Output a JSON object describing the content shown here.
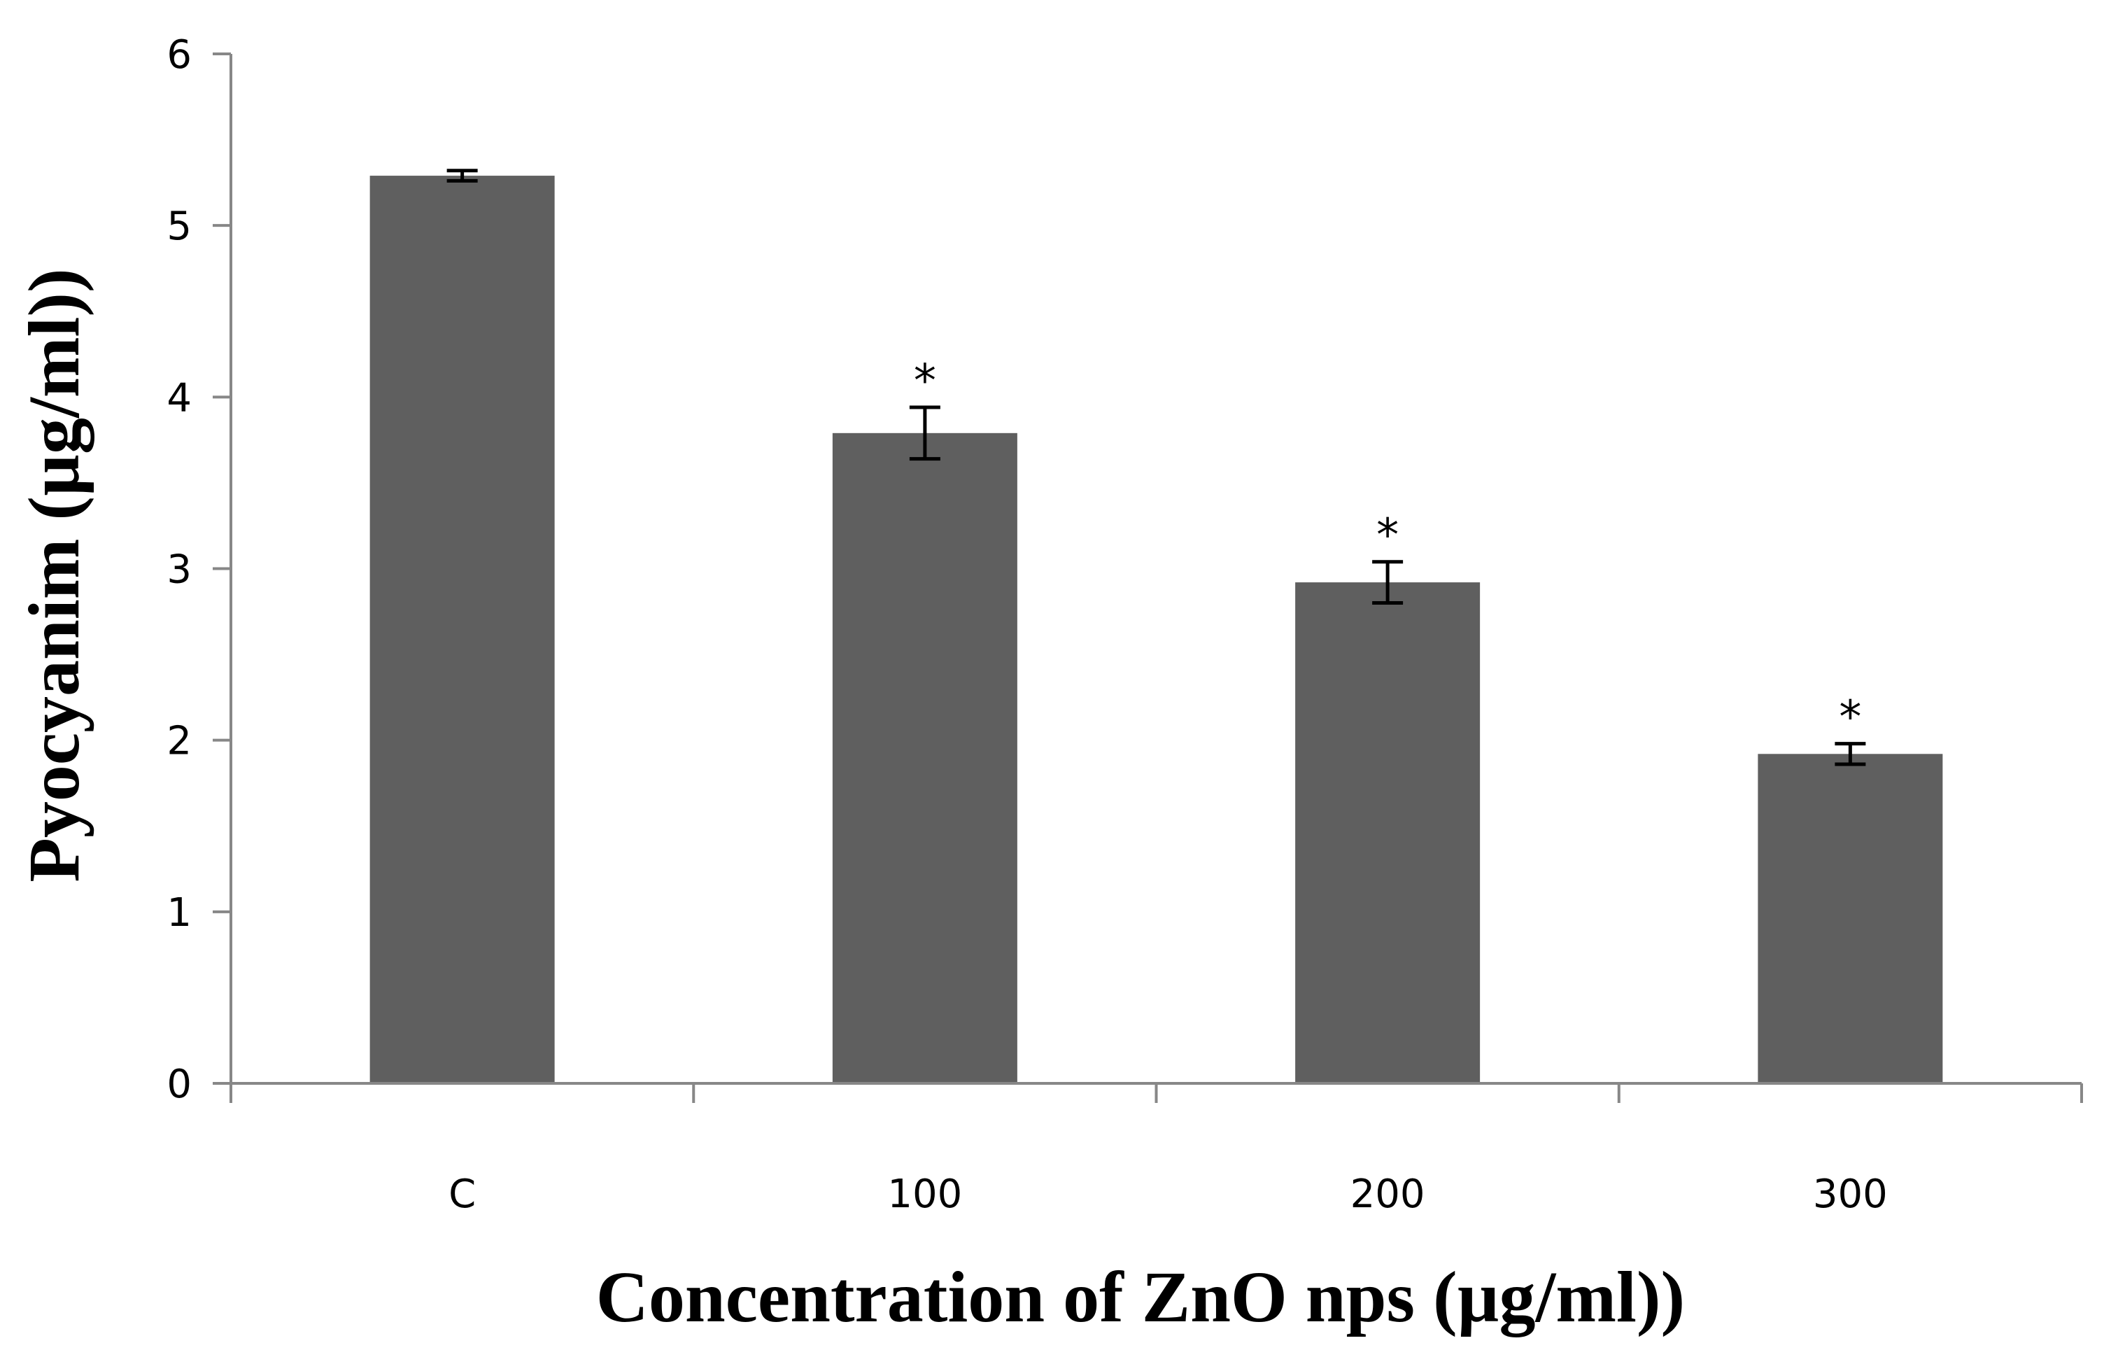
{
  "chart_data": {
    "type": "bar",
    "title": "",
    "xlabel": "Concentration of ZnO nps (µg/ml))",
    "ylabel": "Pyocyanim (µg/ml))",
    "categories": [
      "C",
      "100",
      "200",
      "300"
    ],
    "values": [
      5.29,
      3.79,
      2.92,
      1.92
    ],
    "errors": [
      0.03,
      0.15,
      0.12,
      0.06
    ],
    "significance": [
      "",
      "*",
      "*",
      "*"
    ],
    "ylim": [
      0,
      6
    ],
    "yticks": [
      "0",
      "1",
      "2",
      "3",
      "4",
      "5",
      "6"
    ],
    "grid": false,
    "legend": "none",
    "colors": {
      "bar": "#5f5f5f",
      "axis": "#878787",
      "error_bar": "#000000",
      "text": "#000000"
    }
  }
}
